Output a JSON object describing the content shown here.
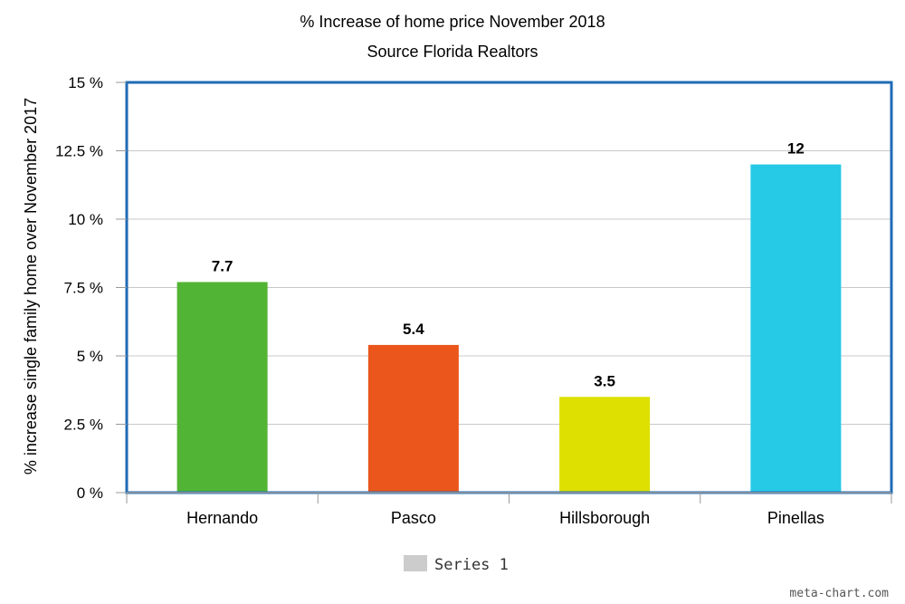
{
  "chart_data": {
    "type": "bar",
    "title": "% Increase of home price November 2018",
    "subtitle": "Source Florida Realtors",
    "ylabel": "% increase single family home over November 2017",
    "xlabel": "",
    "categories": [
      "Hernando",
      "Pasco",
      "Hillsborough",
      "Pinellas"
    ],
    "series": [
      {
        "name": "Series 1",
        "values": [
          7.7,
          5.4,
          3.5,
          12
        ],
        "labels": [
          "7.7",
          "5.4",
          "3.5",
          "12"
        ]
      }
    ],
    "bar_colors": [
      "#52b435",
      "#ea561b",
      "#dde000",
      "#26c9e6"
    ],
    "ylim": [
      0,
      15
    ],
    "yticks": [
      0,
      2.5,
      5,
      7.5,
      10,
      12.5,
      15
    ],
    "ytick_labels": [
      "0 %",
      "2.5 %",
      "5 %",
      "7.5 %",
      "10 %",
      "12.5 %",
      "15 %"
    ],
    "grid": true,
    "legend": {
      "position": "bottom",
      "entries": [
        "Series 1"
      ],
      "swatch_color": "#cccccc"
    },
    "frame_color": "#1f6bb5",
    "grid_color": "#c8c8c8",
    "credit": "meta-chart.com"
  }
}
